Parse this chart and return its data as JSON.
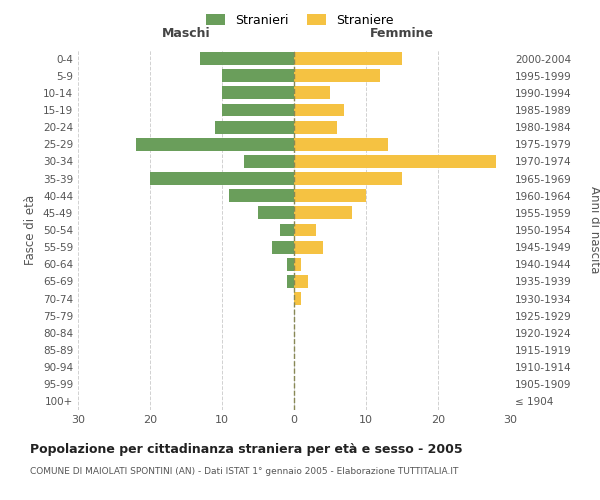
{
  "age_groups": [
    "100+",
    "95-99",
    "90-94",
    "85-89",
    "80-84",
    "75-79",
    "70-74",
    "65-69",
    "60-64",
    "55-59",
    "50-54",
    "45-49",
    "40-44",
    "35-39",
    "30-34",
    "25-29",
    "20-24",
    "15-19",
    "10-14",
    "5-9",
    "0-4"
  ],
  "birth_years": [
    "≤ 1904",
    "1905-1909",
    "1910-1914",
    "1915-1919",
    "1920-1924",
    "1925-1929",
    "1930-1934",
    "1935-1939",
    "1940-1944",
    "1945-1949",
    "1950-1954",
    "1955-1959",
    "1960-1964",
    "1965-1969",
    "1970-1974",
    "1975-1979",
    "1980-1984",
    "1985-1989",
    "1990-1994",
    "1995-1999",
    "2000-2004"
  ],
  "males": [
    0,
    0,
    0,
    0,
    0,
    0,
    0,
    1,
    1,
    3,
    2,
    5,
    9,
    20,
    7,
    22,
    11,
    10,
    10,
    10,
    13
  ],
  "females": [
    0,
    0,
    0,
    0,
    0,
    0,
    1,
    2,
    1,
    4,
    3,
    8,
    10,
    15,
    28,
    13,
    6,
    7,
    5,
    12,
    15
  ],
  "male_color": "#6a9e5b",
  "female_color": "#f5c242",
  "background_color": "#ffffff",
  "grid_color": "#cccccc",
  "title": "Popolazione per cittadinanza straniera per età e sesso - 2005",
  "subtitle": "COMUNE DI MAIOLATI SPONTINI (AN) - Dati ISTAT 1° gennaio 2005 - Elaborazione TUTTITALIA.IT",
  "xlabel_left": "Maschi",
  "xlabel_right": "Femmine",
  "ylabel_left": "Fasce di età",
  "ylabel_right": "Anni di nascita",
  "legend_male": "Stranieri",
  "legend_female": "Straniere",
  "xlim": 30
}
